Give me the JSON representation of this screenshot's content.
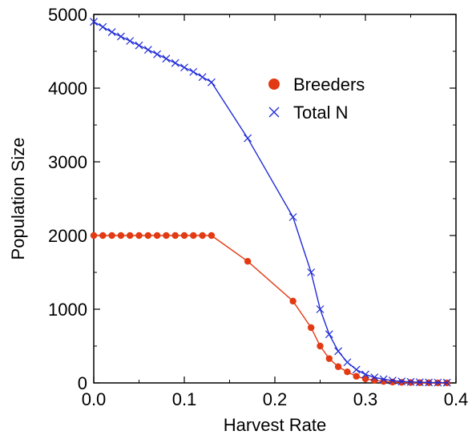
{
  "chart_data": {
    "type": "line",
    "title": "",
    "xlabel": "Harvest Rate",
    "ylabel": "Population Size",
    "xlim": [
      0.0,
      0.4
    ],
    "ylim": [
      0,
      5000
    ],
    "x_ticks": [
      0.0,
      0.1,
      0.2,
      0.3,
      0.4
    ],
    "x_tick_labels": [
      "0.0",
      "0.1",
      "0.2",
      "0.3",
      "0.4"
    ],
    "y_ticks": [
      0,
      1000,
      2000,
      3000,
      4000,
      5000
    ],
    "y_tick_labels": [
      "0",
      "1000",
      "2000",
      "3000",
      "4000",
      "5000"
    ],
    "grid": false,
    "legend_position": "upper-right",
    "series": [
      {
        "name": "Breeders",
        "color": "#e23a12",
        "marker": "circle",
        "x": [
          0.0,
          0.01,
          0.02,
          0.03,
          0.04,
          0.05,
          0.06,
          0.07,
          0.08,
          0.09,
          0.1,
          0.11,
          0.12,
          0.13,
          0.17,
          0.22,
          0.24,
          0.25,
          0.26,
          0.27,
          0.28,
          0.29,
          0.3,
          0.31,
          0.32,
          0.33,
          0.34,
          0.35,
          0.36,
          0.37,
          0.38,
          0.39
        ],
        "y": [
          2000,
          2000,
          2000,
          2000,
          2000,
          2000,
          2000,
          2000,
          2000,
          2000,
          2000,
          2000,
          2000,
          2000,
          1650,
          1110,
          750,
          500,
          330,
          220,
          150,
          90,
          55,
          35,
          20,
          12,
          8,
          5,
          3,
          2,
          1,
          1
        ]
      },
      {
        "name": "Total N",
        "color": "#1f2bd6",
        "marker": "x",
        "x": [
          0.0,
          0.01,
          0.02,
          0.03,
          0.04,
          0.05,
          0.06,
          0.07,
          0.08,
          0.09,
          0.1,
          0.11,
          0.12,
          0.13,
          0.17,
          0.22,
          0.24,
          0.25,
          0.26,
          0.27,
          0.28,
          0.29,
          0.3,
          0.31,
          0.32,
          0.33,
          0.34,
          0.35,
          0.36,
          0.37,
          0.38,
          0.39
        ],
        "y": [
          4900,
          4830,
          4760,
          4700,
          4640,
          4580,
          4520,
          4460,
          4400,
          4340,
          4280,
          4220,
          4150,
          4080,
          3320,
          2250,
          1500,
          1000,
          660,
          430,
          280,
          180,
          115,
          75,
          50,
          32,
          20,
          14,
          9,
          6,
          4,
          3
        ]
      }
    ]
  }
}
